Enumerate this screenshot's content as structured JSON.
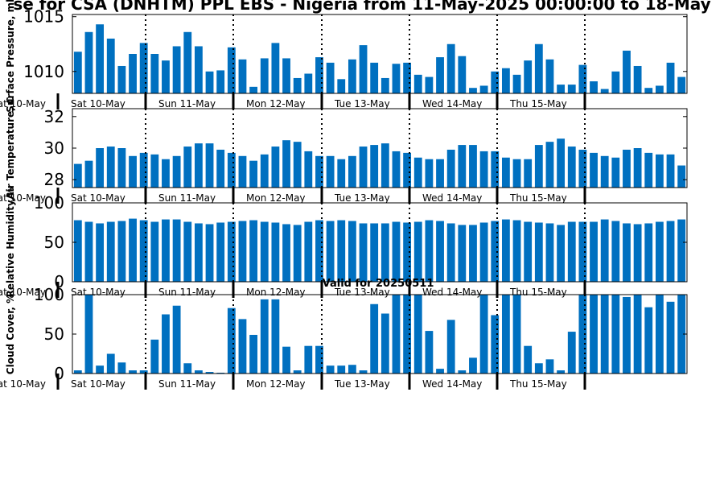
{
  "title": "se for CSA (DNHTM) PPL EBS  - Nigeria from 11-May-2025 00:00:00 to 18-May",
  "chart_data": [
    {
      "type": "bar",
      "ylabel": "Surface Pressure, mb",
      "ylim": [
        1008,
        1015.2
      ],
      "yticks": [
        1010,
        1015
      ],
      "day_labels": [
        "Sat 10-May",
        "Sun 11-May",
        "Mon 12-May",
        "Tue 13-May",
        "Wed 14-May",
        "Thu 15-May"
      ],
      "values": [
        1011.8,
        1013.6,
        1014.3,
        1013.0,
        1010.5,
        1011.6,
        1012.6,
        1011.6,
        1011.0,
        1012.3,
        1013.6,
        1012.3,
        1010.0,
        1010.1,
        1012.2,
        1011.1,
        1008.6,
        1011.2,
        1012.6,
        1011.2,
        1009.4,
        1009.8,
        1011.3,
        1010.8,
        1009.3,
        1011.1,
        1012.4,
        1010.8,
        1009.4,
        1010.7,
        1010.8,
        1009.7,
        1009.5,
        1011.3,
        1012.5,
        1011.4,
        1008.5,
        1008.7,
        1010.0,
        1010.3,
        1009.7,
        1011.0,
        1012.5,
        1011.1,
        1008.8,
        1008.8,
        1010.6,
        1009.1,
        1008.4,
        1010.0,
        1011.9,
        1010.5,
        1008.5,
        1008.7,
        1010.8,
        1009.5
      ]
    },
    {
      "type": "bar",
      "ylabel": "Air Temperature, C",
      "ylim": [
        27.5,
        32.5
      ],
      "yticks": [
        28,
        30,
        32
      ],
      "day_labels": [
        "Sat 10-May",
        "Sun 11-May",
        "Mon 12-May",
        "Tue 13-May",
        "Wed 14-May",
        "Thu 15-May"
      ],
      "values": [
        29.0,
        29.2,
        30.0,
        30.1,
        30.0,
        29.5,
        29.7,
        29.6,
        29.3,
        29.5,
        30.1,
        30.3,
        30.3,
        29.9,
        29.7,
        29.5,
        29.2,
        29.6,
        30.1,
        30.5,
        30.4,
        29.8,
        29.5,
        29.5,
        29.3,
        29.5,
        30.1,
        30.2,
        30.3,
        29.8,
        29.7,
        29.4,
        29.3,
        29.3,
        29.9,
        30.2,
        30.2,
        29.8,
        29.8,
        29.4,
        29.3,
        29.3,
        30.2,
        30.4,
        30.6,
        30.1,
        29.9,
        29.7,
        29.5,
        29.4,
        29.9,
        30.0,
        29.7,
        29.6,
        29.6,
        28.9
      ]
    },
    {
      "type": "bar",
      "ylabel": "Relative Humidity,%",
      "ylim": [
        0,
        100
      ],
      "yticks": [
        0,
        50,
        100
      ],
      "day_labels": [
        "Sat 10-May",
        "Sun 11-May",
        "Mon 12-May",
        "Tue 13-May",
        "Wed 14-May",
        "Thu 15-May"
      ],
      "values": [
        78,
        76,
        74,
        76,
        77,
        80,
        78,
        76,
        79,
        79,
        76,
        74,
        73,
        75,
        76,
        77,
        78,
        76,
        75,
        73,
        72,
        76,
        78,
        77,
        78,
        77,
        74,
        74,
        74,
        76,
        75,
        76,
        78,
        77,
        74,
        72,
        72,
        75,
        77,
        79,
        78,
        76,
        75,
        74,
        72,
        76,
        76,
        76,
        79,
        77,
        74,
        73,
        74,
        76,
        77,
        79
      ]
    },
    {
      "type": "bar",
      "ylabel": "Cloud Cover, %",
      "ylim": [
        0,
        100
      ],
      "yticks": [
        0,
        50,
        100
      ],
      "day_labels": [
        "Sat 10-May",
        "Sun 11-May",
        "Mon 12-May",
        "Tue 13-May",
        "Wed 14-May",
        "Thu 15-May"
      ],
      "values": [
        4,
        100,
        10,
        25,
        14,
        4,
        4,
        43,
        75,
        86,
        13,
        4,
        2,
        1,
        83,
        69,
        49,
        94,
        94,
        34,
        4,
        35,
        35,
        10,
        10,
        11,
        4,
        88,
        76,
        100,
        100,
        100,
        54,
        6,
        68,
        4,
        20,
        100,
        74,
        100,
        100,
        35,
        13,
        18,
        4,
        53,
        100,
        100,
        100,
        100,
        97,
        100,
        84,
        100,
        91,
        100
      ]
    }
  ],
  "valid_label": "Valid for 20250511",
  "colors": {
    "bar": "#0070c0",
    "axis": "#000000"
  }
}
